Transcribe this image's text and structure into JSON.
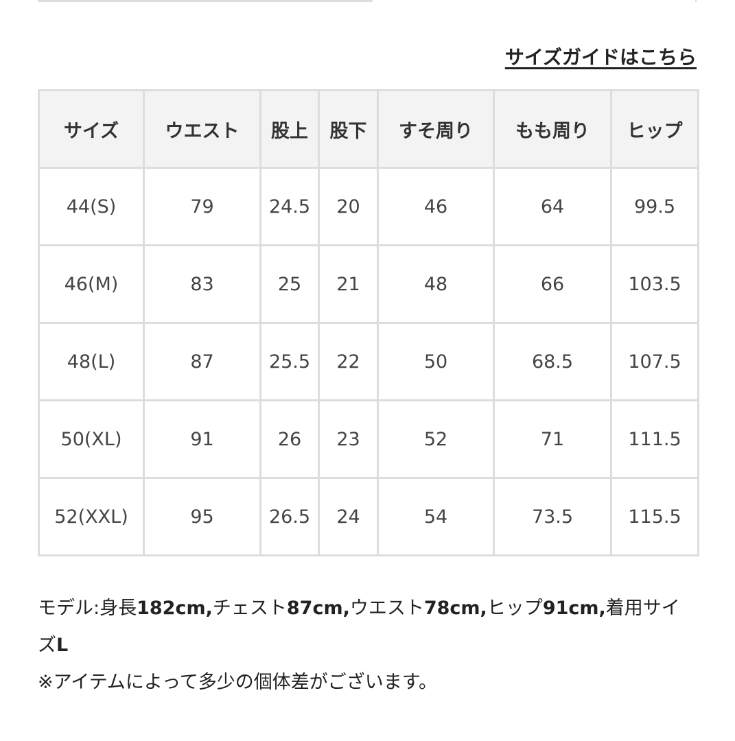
{
  "size_guide_link": "サイズガイドはこちら",
  "table": {
    "headers": [
      "サイズ",
      "ウエスト",
      "股上",
      "股下",
      "すそ周り",
      "もも周り",
      "ヒップ"
    ],
    "rows": [
      [
        "44(S)",
        "79",
        "24.5",
        "20",
        "46",
        "64",
        "99.5"
      ],
      [
        "46(M)",
        "83",
        "25",
        "21",
        "48",
        "66",
        "103.5"
      ],
      [
        "48(L)",
        "87",
        "25.5",
        "22",
        "50",
        "68.5",
        "107.5"
      ],
      [
        "50(XL)",
        "91",
        "26",
        "23",
        "52",
        "71",
        "111.5"
      ],
      [
        "52(XXL)",
        "95",
        "26.5",
        "24",
        "54",
        "73.5",
        "115.5"
      ]
    ]
  },
  "notes": {
    "model": "モデル:身長182cm,チェスト87cm,ウエスト78cm,ヒップ91cm,着用サイズL",
    "disclaimer": "※アイテムによって多少の個体差がございます。"
  }
}
